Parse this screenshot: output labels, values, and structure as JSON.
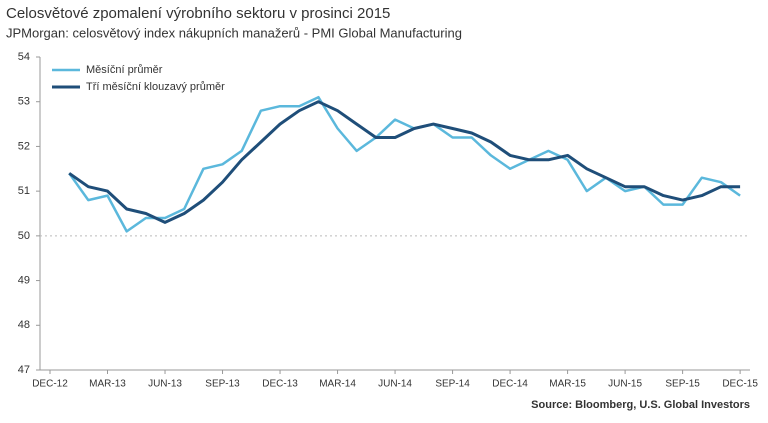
{
  "chart_data": {
    "type": "line",
    "title": "Celosvětové zpomalení výrobního sektoru v prosinci 2015",
    "subtitle": "JPMorgan: celosvětový index nákupních manažerů - PMI Global Manufacturing",
    "source": "Source: Bloomberg, U.S. Global Investors",
    "categories": [
      "DEC-12",
      null,
      null,
      "MAR-13",
      null,
      null,
      "JUN-13",
      null,
      null,
      "SEP-13",
      null,
      null,
      "DEC-13",
      null,
      null,
      "MAR-14",
      null,
      null,
      "JUN-14",
      null,
      null,
      "SEP-14",
      null,
      null,
      "DEC-14",
      null,
      null,
      "MAR-15",
      null,
      null,
      "JUN-15",
      null,
      null,
      "SEP-15",
      null,
      null,
      "DEC-15"
    ],
    "series": [
      {
        "name": "Měsíční průměr",
        "color": "#5bb8dc",
        "values": [
          null,
          51.4,
          50.8,
          50.9,
          50.1,
          50.4,
          50.4,
          50.6,
          51.5,
          51.6,
          51.9,
          52.8,
          52.9,
          52.9,
          53.1,
          52.4,
          51.9,
          52.2,
          52.6,
          52.4,
          52.5,
          52.2,
          52.2,
          51.8,
          51.5,
          51.7,
          51.9,
          51.7,
          51.0,
          51.3,
          51.0,
          51.1,
          50.7,
          50.7,
          51.3,
          51.2,
          50.9
        ]
      },
      {
        "name": "Tří měsíční klouzavý průměr",
        "color": "#1f4e79",
        "values": [
          null,
          51.4,
          51.1,
          51.0,
          50.6,
          50.5,
          50.3,
          50.5,
          50.8,
          51.2,
          51.7,
          52.1,
          52.5,
          52.8,
          53.0,
          52.8,
          52.5,
          52.2,
          52.2,
          52.4,
          52.5,
          52.4,
          52.3,
          52.1,
          51.8,
          51.7,
          51.7,
          51.8,
          51.5,
          51.3,
          51.1,
          51.1,
          50.9,
          50.8,
          50.9,
          51.1,
          51.1
        ]
      }
    ],
    "ylim": [
      47,
      54
    ],
    "yticks": [
      47,
      48,
      49,
      50,
      51,
      52,
      53,
      54
    ],
    "reference_line": 50,
    "legend": "top-left"
  }
}
